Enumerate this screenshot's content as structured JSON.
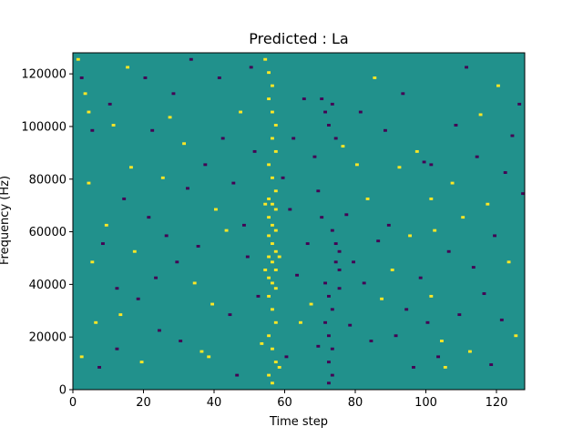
{
  "chart_data": {
    "type": "heatmap",
    "title": "Predicted : La",
    "xlabel": "Time step",
    "ylabel": "Frequency (Hz)",
    "xlim": [
      0,
      128
    ],
    "ylim": [
      0,
      128000
    ],
    "x_ticks": [
      0,
      20,
      40,
      60,
      80,
      100,
      120
    ],
    "x_tick_labels": [
      "0",
      "20",
      "40",
      "60",
      "80",
      "100",
      "120"
    ],
    "y_ticks": [
      0,
      20000,
      40000,
      60000,
      80000,
      100000,
      120000
    ],
    "y_tick_labels": [
      "0",
      "20000",
      "40000",
      "60000",
      "80000",
      "100000",
      "120000"
    ],
    "grid": false,
    "colormap": "viridis",
    "levels": {
      "low": -1,
      "mid": 0,
      "high": 1
    },
    "colors": {
      "low": "#440154",
      "mid": "#21918c",
      "high": "#fde725"
    },
    "background_value": 0,
    "cells": [
      [
        54,
        125,
        1
      ],
      [
        55,
        120,
        1
      ],
      [
        56,
        115,
        1
      ],
      [
        55,
        110,
        1
      ],
      [
        56,
        105,
        1
      ],
      [
        57,
        100,
        1
      ],
      [
        56,
        95,
        1
      ],
      [
        57,
        90,
        1
      ],
      [
        55,
        85,
        1
      ],
      [
        56,
        80,
        1
      ],
      [
        57,
        75,
        1
      ],
      [
        55,
        72,
        1
      ],
      [
        56,
        70,
        1
      ],
      [
        57,
        68,
        1
      ],
      [
        55,
        65,
        1
      ],
      [
        56,
        62,
        1
      ],
      [
        57,
        60,
        1
      ],
      [
        55,
        58,
        1
      ],
      [
        56,
        55,
        1
      ],
      [
        57,
        52,
        1
      ],
      [
        55,
        50,
        1
      ],
      [
        56,
        48,
        1
      ],
      [
        57,
        45,
        1
      ],
      [
        55,
        42,
        1
      ],
      [
        56,
        40,
        1
      ],
      [
        57,
        38,
        1
      ],
      [
        55,
        35,
        1
      ],
      [
        56,
        30,
        1
      ],
      [
        57,
        25,
        1
      ],
      [
        55,
        20,
        1
      ],
      [
        56,
        15,
        1
      ],
      [
        57,
        10,
        1
      ],
      [
        55,
        5,
        1
      ],
      [
        56,
        2,
        1
      ],
      [
        58,
        50,
        1
      ],
      [
        58,
        8,
        1
      ],
      [
        54,
        70,
        1
      ],
      [
        54,
        45,
        1
      ],
      [
        70,
        110,
        -1
      ],
      [
        71,
        105,
        -1
      ],
      [
        72,
        100,
        -1
      ],
      [
        73,
        108,
        -1
      ],
      [
        74,
        95,
        -1
      ],
      [
        73,
        60,
        -1
      ],
      [
        74,
        55,
        -1
      ],
      [
        75,
        52,
        -1
      ],
      [
        74,
        48,
        -1
      ],
      [
        75,
        45,
        -1
      ],
      [
        71,
        40,
        -1
      ],
      [
        72,
        35,
        -1
      ],
      [
        73,
        30,
        -1
      ],
      [
        71,
        25,
        -1
      ],
      [
        72,
        20,
        -1
      ],
      [
        73,
        15,
        -1
      ],
      [
        72,
        10,
        -1
      ],
      [
        73,
        5,
        -1
      ],
      [
        72,
        2,
        -1
      ],
      [
        70,
        65,
        -1
      ],
      [
        69,
        75,
        -1
      ],
      [
        75,
        38,
        -1
      ],
      [
        101,
        85,
        -1
      ],
      [
        99,
        86,
        -1
      ],
      [
        102,
        60,
        1
      ],
      [
        101,
        35,
        1
      ],
      [
        100,
        25,
        -1
      ],
      [
        103,
        12,
        -1
      ],
      [
        105,
        8,
        1
      ],
      [
        101,
        72,
        1
      ],
      [
        1,
        125,
        1
      ],
      [
        2,
        118,
        -1
      ],
      [
        3,
        112,
        1
      ],
      [
        4,
        105,
        1
      ],
      [
        5,
        98,
        -1
      ],
      [
        4,
        78,
        1
      ],
      [
        5,
        48,
        1
      ],
      [
        6,
        25,
        1
      ],
      [
        2,
        12,
        1
      ],
      [
        7,
        8,
        -1
      ],
      [
        8,
        55,
        -1
      ],
      [
        9,
        62,
        1
      ],
      [
        10,
        108,
        -1
      ],
      [
        11,
        100,
        1
      ],
      [
        12,
        38,
        -1
      ],
      [
        13,
        28,
        1
      ],
      [
        12,
        15,
        -1
      ],
      [
        14,
        72,
        -1
      ],
      [
        15,
        122,
        1
      ],
      [
        16,
        84,
        1
      ],
      [
        17,
        52,
        1
      ],
      [
        18,
        34,
        -1
      ],
      [
        19,
        10,
        1
      ],
      [
        20,
        118,
        -1
      ],
      [
        21,
        65,
        -1
      ],
      [
        22,
        98,
        -1
      ],
      [
        23,
        42,
        -1
      ],
      [
        24,
        22,
        -1
      ],
      [
        25,
        80,
        1
      ],
      [
        26,
        58,
        -1
      ],
      [
        27,
        103,
        1
      ],
      [
        28,
        112,
        -1
      ],
      [
        29,
        48,
        -1
      ],
      [
        30,
        18,
        -1
      ],
      [
        31,
        93,
        1
      ],
      [
        32,
        76,
        -1
      ],
      [
        33,
        125,
        -1
      ],
      [
        34,
        40,
        1
      ],
      [
        35,
        54,
        -1
      ],
      [
        36,
        14,
        1
      ],
      [
        37,
        85,
        -1
      ],
      [
        38,
        12,
        1
      ],
      [
        39,
        32,
        1
      ],
      [
        40,
        68,
        1
      ],
      [
        41,
        118,
        -1
      ],
      [
        42,
        95,
        -1
      ],
      [
        43,
        60,
        1
      ],
      [
        44,
        28,
        -1
      ],
      [
        45,
        78,
        -1
      ],
      [
        46,
        5,
        -1
      ],
      [
        47,
        105,
        1
      ],
      [
        48,
        62,
        -1
      ],
      [
        49,
        50,
        -1
      ],
      [
        50,
        122,
        -1
      ],
      [
        51,
        90,
        -1
      ],
      [
        52,
        35,
        -1
      ],
      [
        53,
        17,
        1
      ],
      [
        59,
        80,
        -1
      ],
      [
        60,
        12,
        -1
      ],
      [
        61,
        68,
        -1
      ],
      [
        62,
        95,
        -1
      ],
      [
        63,
        43,
        -1
      ],
      [
        64,
        25,
        1
      ],
      [
        65,
        110,
        -1
      ],
      [
        66,
        55,
        -1
      ],
      [
        67,
        32,
        1
      ],
      [
        68,
        88,
        -1
      ],
      [
        69,
        16,
        -1
      ],
      [
        76,
        92,
        1
      ],
      [
        77,
        66,
        -1
      ],
      [
        78,
        24,
        -1
      ],
      [
        79,
        48,
        -1
      ],
      [
        80,
        85,
        1
      ],
      [
        81,
        105,
        -1
      ],
      [
        82,
        40,
        -1
      ],
      [
        83,
        72,
        1
      ],
      [
        84,
        18,
        -1
      ],
      [
        85,
        118,
        1
      ],
      [
        86,
        56,
        -1
      ],
      [
        87,
        34,
        1
      ],
      [
        88,
        98,
        -1
      ],
      [
        89,
        62,
        -1
      ],
      [
        90,
        45,
        1
      ],
      [
        91,
        20,
        -1
      ],
      [
        92,
        84,
        1
      ],
      [
        93,
        112,
        -1
      ],
      [
        94,
        30,
        -1
      ],
      [
        95,
        58,
        1
      ],
      [
        96,
        8,
        -1
      ],
      [
        97,
        90,
        1
      ],
      [
        98,
        42,
        -1
      ],
      [
        104,
        18,
        1
      ],
      [
        106,
        52,
        -1
      ],
      [
        107,
        78,
        1
      ],
      [
        108,
        100,
        -1
      ],
      [
        109,
        28,
        -1
      ],
      [
        110,
        65,
        1
      ],
      [
        111,
        122,
        -1
      ],
      [
        112,
        14,
        1
      ],
      [
        113,
        46,
        -1
      ],
      [
        114,
        88,
        -1
      ],
      [
        115,
        104,
        1
      ],
      [
        116,
        36,
        -1
      ],
      [
        117,
        70,
        1
      ],
      [
        118,
        9,
        -1
      ],
      [
        119,
        58,
        -1
      ],
      [
        120,
        115,
        1
      ],
      [
        121,
        26,
        -1
      ],
      [
        122,
        82,
        -1
      ],
      [
        123,
        48,
        1
      ],
      [
        124,
        96,
        -1
      ],
      [
        125,
        20,
        1
      ],
      [
        126,
        108,
        -1
      ],
      [
        127,
        74,
        -1
      ]
    ]
  }
}
